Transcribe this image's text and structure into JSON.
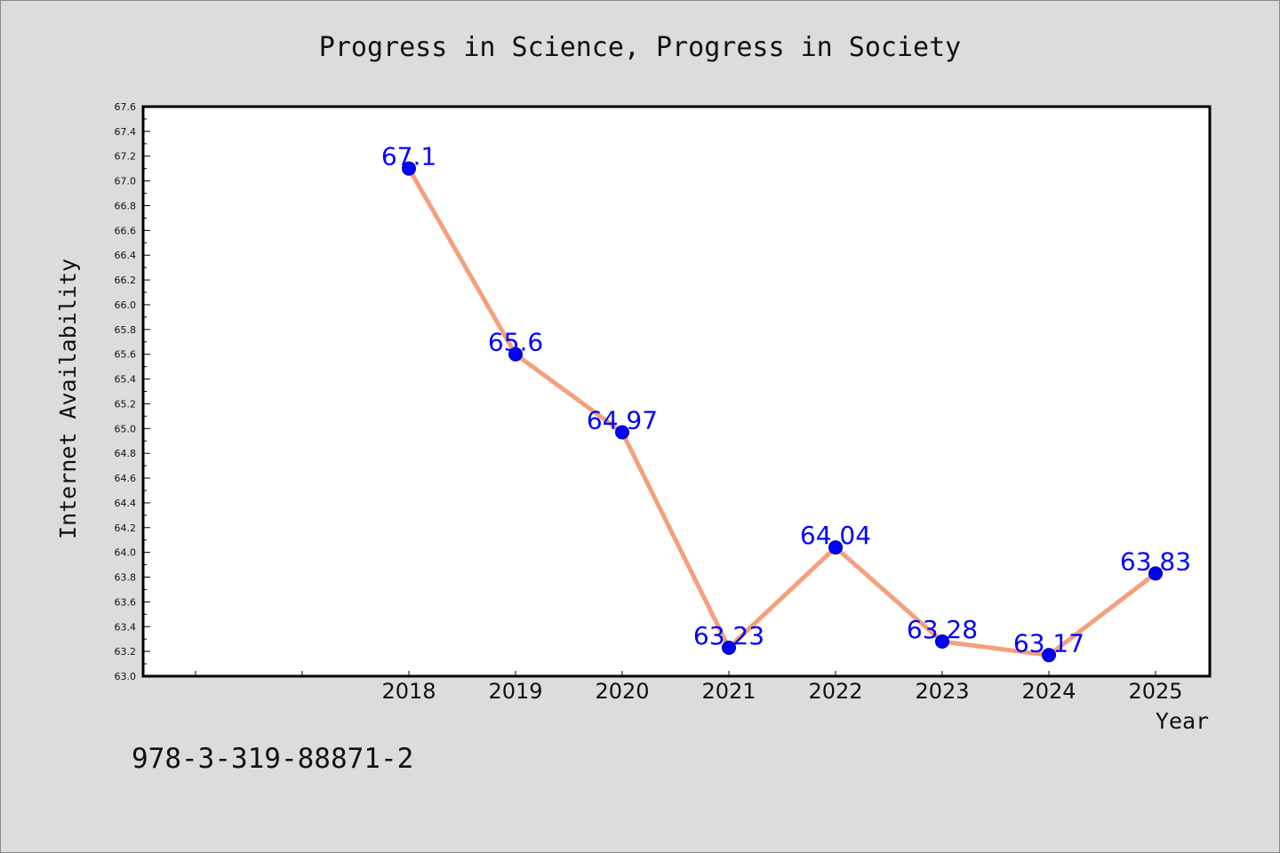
{
  "chart_data": {
    "type": "line",
    "title": "Progress in Science, Progress in Society",
    "xlabel": "Year",
    "ylabel": "Internet Availability",
    "categories": [
      "2018",
      "2019",
      "2020",
      "2021",
      "2022",
      "2023",
      "2024",
      "2025"
    ],
    "data_labels": [
      "67.1",
      "65.6",
      "64.97",
      "63.23",
      "64.04",
      "63.28",
      "63.17",
      "63.83"
    ],
    "series": [
      {
        "values": [
          67.1,
          65.6,
          64.97,
          63.23,
          64.04,
          63.28,
          63.17,
          63.83
        ]
      }
    ],
    "ylim": [
      63.0,
      67.6
    ],
    "ytick_step": 0.2,
    "grid": false,
    "legend": "none",
    "colors": {
      "line": "#f4a07c",
      "marker": "#0000ff",
      "data_label": "#0000ff",
      "background": "#dcdcdc",
      "plot_background": "#ffffff"
    }
  },
  "footnote": "978-3-319-88871-2"
}
